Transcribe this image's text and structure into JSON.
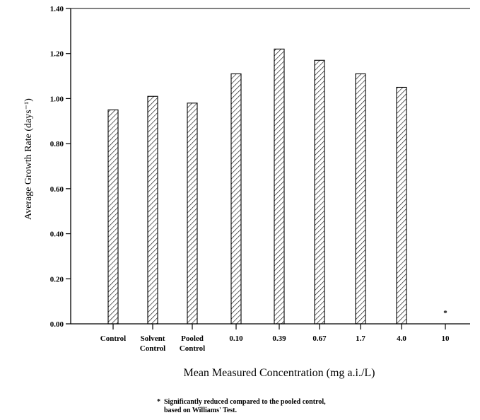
{
  "chart_data": {
    "type": "bar",
    "title": "",
    "xlabel": "Mean Measured Concentration (mg a.i./L)",
    "ylabel": "Average Growth Rate (days⁻¹)",
    "ylim": [
      0,
      1.4
    ],
    "yticks": [
      "0.00",
      "0.20",
      "0.40",
      "0.60",
      "0.80",
      "1.00",
      "1.20",
      "1.40"
    ],
    "categories": [
      [
        "Control"
      ],
      [
        "Solvent",
        "Control"
      ],
      [
        "Pooled",
        "Control"
      ],
      [
        "0.10"
      ],
      [
        "0.39"
      ],
      [
        "0.67"
      ],
      [
        "1.7"
      ],
      [
        "4.0"
      ],
      [
        "10"
      ]
    ],
    "values": [
      0.95,
      1.01,
      0.98,
      1.11,
      1.22,
      1.17,
      1.11,
      1.05,
      0
    ],
    "annotations": [
      {
        "category_index": 8,
        "text": "*"
      }
    ],
    "grid": false,
    "bar_fill": "diagonal-hatch"
  },
  "footnote": {
    "marker": "*",
    "line1": "Significantly reduced compared to the pooled control,",
    "line2": "based on Williams' Test."
  },
  "colors": {
    "ink": "#000000",
    "background": "#ffffff"
  }
}
